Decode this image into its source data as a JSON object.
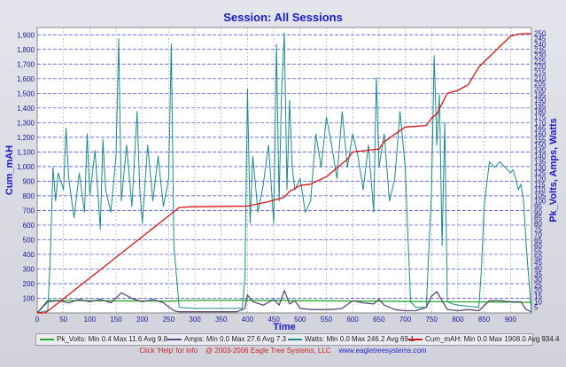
{
  "title": "Session: All Sessions",
  "footer": {
    "help": "Click 'Help' for info",
    "copyright": "@ 2003-2006 Eagle Tree Systems, LLC",
    "url": "www.eagletreesystems.com"
  },
  "chart_data": {
    "type": "line",
    "title": "Session: All Sessions",
    "xlabel": "Time",
    "ylabel_left": "Cum_mAH",
    "ylabel_right": "Pk_Volts, Amps, Watts",
    "xlim": [
      0,
      940
    ],
    "ylim_left": [
      0,
      1950
    ],
    "ylim_right": [
      0,
      255
    ],
    "x_ticks": [
      "0",
      "50",
      "100",
      "150",
      "200",
      "250",
      "300",
      "350",
      "400",
      "450",
      "500",
      "550",
      "600",
      "650",
      "700",
      "750",
      "800",
      "850",
      "900"
    ],
    "y_left_ticks": [
      "100",
      "200",
      "300",
      "400",
      "500",
      "600",
      "700",
      "800",
      "900",
      "1,000",
      "1,100",
      "1,200",
      "1,300",
      "1,400",
      "1,500",
      "1,600",
      "1,700",
      "1,800",
      "1,900"
    ],
    "y_right_ticks": [
      "5",
      "10",
      "15",
      "20",
      "25",
      "30",
      "35",
      "40",
      "45",
      "50",
      "55",
      "60",
      "65",
      "70",
      "75",
      "80",
      "85",
      "90",
      "95",
      "100",
      "105",
      "110",
      "115",
      "120",
      "125",
      "130",
      "135",
      "140",
      "145",
      "150",
      "155",
      "160",
      "165",
      "170",
      "175",
      "180",
      "185",
      "190",
      "195",
      "200",
      "205",
      "210",
      "215",
      "220",
      "225",
      "230",
      "235",
      "240",
      "245",
      "250"
    ],
    "grid": true,
    "legend_position": "bottom",
    "series": [
      {
        "name": "Pk_Volts",
        "axis": "right",
        "color": "#22aa22",
        "x": [
          0,
          20,
          260,
          280,
          400,
          900,
          940
        ],
        "y": [
          0,
          11.2,
          10.5,
          11.2,
          11.3,
          9.6,
          9.4
        ]
      },
      {
        "name": "Amps",
        "axis": "right",
        "color": "#5a4a7a",
        "x": [
          0,
          20,
          40,
          60,
          80,
          100,
          120,
          140,
          160,
          180,
          200,
          220,
          240,
          260,
          270,
          290,
          310,
          330,
          350,
          380,
          395,
          400,
          410,
          430,
          450,
          460,
          470,
          480,
          490,
          500,
          520,
          540,
          560,
          580,
          600,
          620,
          640,
          650,
          660,
          680,
          700,
          720,
          740,
          750,
          760,
          780,
          800,
          820,
          840,
          860,
          880,
          900,
          920,
          930,
          940
        ],
        "y": [
          0,
          10,
          11,
          9,
          12,
          10,
          12,
          9,
          18,
          13,
          10,
          12,
          9,
          2,
          1,
          1,
          1,
          1,
          1,
          1,
          4,
          16,
          10,
          7,
          12,
          7,
          20,
          8,
          11,
          4,
          3,
          3,
          3,
          4,
          11,
          9,
          8,
          12,
          7,
          3,
          2,
          2,
          5,
          15,
          19,
          3,
          2,
          3,
          2,
          11,
          11,
          10,
          10,
          3,
          1
        ]
      },
      {
        "name": "Watts",
        "axis": "right",
        "color": "#1a8c8c",
        "x": [
          0,
          20,
          25,
          30,
          35,
          40,
          50,
          55,
          60,
          70,
          80,
          90,
          95,
          100,
          110,
          120,
          125,
          130,
          140,
          150,
          155,
          160,
          170,
          180,
          190,
          195,
          200,
          210,
          220,
          230,
          240,
          250,
          255,
          260,
          270,
          300,
          350,
          390,
          395,
          400,
          405,
          410,
          420,
          430,
          440,
          450,
          455,
          460,
          465,
          470,
          475,
          480,
          485,
          490,
          500,
          510,
          520,
          530,
          540,
          550,
          560,
          570,
          580,
          590,
          600,
          610,
          620,
          630,
          640,
          645,
          650,
          660,
          670,
          680,
          690,
          700,
          710,
          720,
          740,
          750,
          755,
          760,
          765,
          770,
          775,
          780,
          790,
          800,
          820,
          840,
          845,
          850,
          860,
          870,
          880,
          890,
          900,
          905,
          910,
          915,
          920,
          925,
          930,
          940
        ],
        "y": [
          0,
          2,
          50,
          130,
          100,
          125,
          110,
          165,
          120,
          85,
          125,
          90,
          160,
          105,
          145,
          75,
          155,
          110,
          90,
          140,
          245,
          100,
          150,
          95,
          180,
          110,
          80,
          150,
          100,
          140,
          95,
          120,
          240,
          60,
          5,
          4,
          4,
          4,
          30,
          200,
          80,
          140,
          90,
          115,
          150,
          80,
          240,
          100,
          200,
          250,
          110,
          190,
          130,
          110,
          120,
          90,
          100,
          160,
          130,
          175,
          150,
          120,
          180,
          130,
          160,
          140,
          110,
          150,
          90,
          210,
          130,
          160,
          100,
          120,
          180,
          130,
          10,
          5,
          5,
          110,
          230,
          150,
          195,
          60,
          170,
          10,
          8,
          7,
          6,
          5,
          40,
          95,
          135,
          130,
          135,
          130,
          125,
          128,
          120,
          110,
          115,
          100,
          60,
          0
        ]
      },
      {
        "name": "Cum_mAH",
        "axis": "left",
        "color": "#dd1111",
        "x": [
          0,
          15,
          30,
          270,
          290,
          400,
          440,
          470,
          480,
          500,
          520,
          550,
          590,
          600,
          650,
          660,
          700,
          740,
          750,
          760,
          780,
          800,
          820,
          840,
          900,
          915,
          930,
          940
        ],
        "y": [
          0,
          0,
          40,
          720,
          725,
          730,
          760,
          790,
          830,
          870,
          880,
          930,
          1050,
          1100,
          1120,
          1170,
          1270,
          1280,
          1330,
          1360,
          1500,
          1520,
          1560,
          1680,
          1890,
          1905,
          1908,
          1908
        ]
      }
    ],
    "legend": [
      {
        "text": "Pk_Volts:  Min 0.4 Max 11.6 Avg 9.8"
      },
      {
        "text": "Amps:  Min 0.0 Max 27.6 Avg 7.3"
      },
      {
        "text": "Watts:  Min 0.0 Max 246.2 Avg 69.1"
      },
      {
        "text": "Cum_mAH:  Min 0.0 Max 1908.0 Avg 934.4"
      }
    ]
  }
}
